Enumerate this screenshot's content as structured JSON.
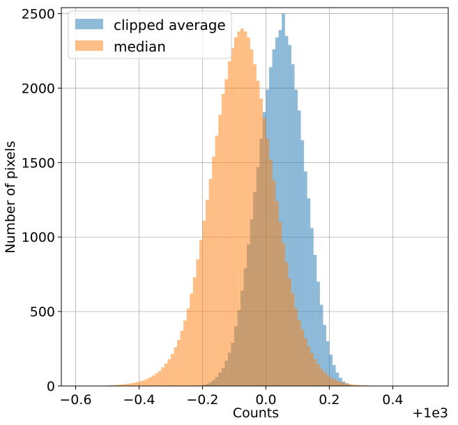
{
  "chart_data": {
    "type": "bar",
    "subtype": "overlaid-histogram",
    "xlabel": "Counts",
    "ylabel": "Number of pixels",
    "x_offset_label": "+1e3",
    "xlim": [
      -0.645,
      0.575
    ],
    "ylim": [
      0,
      2540
    ],
    "xticks": [
      -0.6,
      -0.4,
      -0.2,
      0.0,
      0.2,
      0.4
    ],
    "xtick_labels": [
      "−0.6",
      "−0.4",
      "−0.2",
      "0.0",
      "0.2",
      "0.4"
    ],
    "yticks": [
      0,
      500,
      1000,
      1500,
      2000,
      2500
    ],
    "ytick_labels": [
      "0",
      "500",
      "1000",
      "1500",
      "2000",
      "2500"
    ],
    "grid": true,
    "legend_position": "top-left",
    "bin_width": 0.01,
    "bin_start": -0.6,
    "series": [
      {
        "name": "clipped average",
        "color": "#1f77b4",
        "alpha": 0.5,
        "values": [
          0,
          0,
          0,
          0,
          0,
          0,
          0,
          0,
          0,
          0,
          0,
          0,
          0,
          0,
          0,
          0,
          0,
          0,
          0,
          0,
          0,
          0,
          0,
          0,
          0,
          0,
          0,
          0,
          0,
          0,
          0,
          0,
          0,
          0,
          0,
          0,
          0,
          0,
          0,
          0,
          8,
          15,
          25,
          40,
          60,
          90,
          120,
          170,
          225,
          290,
          400,
          510,
          640,
          790,
          950,
          1120,
          1300,
          1470,
          1660,
          1840,
          1990,
          2140,
          2260,
          2340,
          2390,
          2500,
          2350,
          2290,
          2160,
          1990,
          1850,
          1650,
          1440,
          1260,
          1060,
          880,
          700,
          545,
          410,
          300,
          210,
          140,
          90,
          55,
          30,
          18,
          8,
          0,
          0,
          0,
          0,
          0,
          0,
          0,
          0,
          0,
          0,
          0,
          0,
          0,
          0,
          0,
          0,
          0,
          0,
          0,
          0,
          0,
          0,
          0,
          0,
          0,
          0,
          0
        ]
      },
      {
        "name": "median",
        "color": "#ff7f0e",
        "alpha": 0.5,
        "values": [
          0,
          0,
          0,
          0,
          0,
          0,
          0,
          0,
          2,
          3,
          4,
          5,
          6,
          8,
          10,
          12,
          14,
          18,
          22,
          26,
          32,
          38,
          48,
          58,
          70,
          85,
          100,
          125,
          150,
          180,
          215,
          260,
          310,
          370,
          440,
          520,
          620,
          730,
          850,
          980,
          1110,
          1250,
          1390,
          1540,
          1680,
          1820,
          1960,
          2060,
          2180,
          2270,
          2340,
          2380,
          2400,
          2380,
          2340,
          2260,
          2160,
          2050,
          1930,
          1800,
          1660,
          1520,
          1380,
          1240,
          1100,
          960,
          830,
          720,
          620,
          520,
          440,
          380,
          320,
          265,
          220,
          180,
          145,
          115,
          92,
          72,
          56,
          45,
          36,
          28,
          22,
          17,
          13,
          10,
          8,
          6,
          5,
          4,
          3,
          2,
          2,
          1,
          0,
          0,
          0,
          0
        ]
      }
    ]
  }
}
